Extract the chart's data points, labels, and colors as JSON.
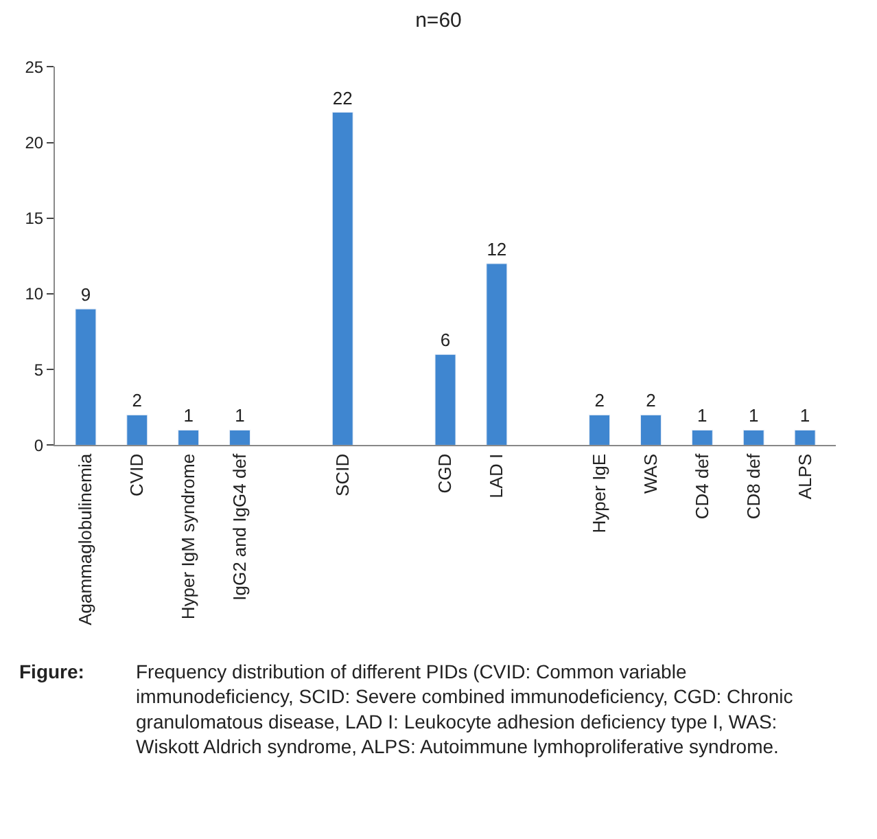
{
  "chart_data": {
    "type": "bar",
    "title": "n=60",
    "categories": [
      "Agammaglobulinemia",
      "CVID",
      "Hyper IgM syndrome",
      "IgG2 and IgG4 def",
      null,
      "SCID",
      null,
      "CGD",
      "LAD I",
      null,
      "Hyper IgE",
      "WAS",
      "CD4 def",
      "CD8 def",
      "ALPS"
    ],
    "values": [
      9,
      2,
      1,
      1,
      null,
      22,
      null,
      6,
      12,
      null,
      2,
      2,
      1,
      1,
      1
    ],
    "color": "#3f86d0",
    "ylim": [
      0,
      25
    ],
    "yticks": [
      0,
      5,
      10,
      15,
      20,
      25
    ],
    "legend": false,
    "data_labels": true,
    "annotations": [
      "Figure: Frequency distribution of different PIDs (CVID: Common variable immunodeficiency, SCID: Severe combined immunodeficiency, CGD: Chronic granulomatous disease, LAD I: Leukocyte adhesion deficiency type I, WAS: Wiskott Aldrich syndrome, ALPS: Autoimmune lymhoproliferative syndrome."
    ]
  }
}
